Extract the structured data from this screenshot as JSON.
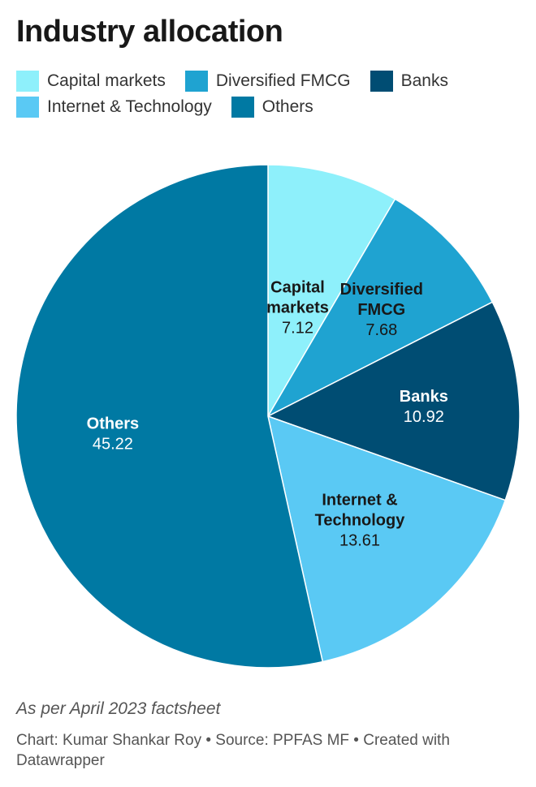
{
  "chart_data": {
    "type": "pie",
    "title": "Industry allocation",
    "categories": [
      "Capital markets",
      "Diversified FMCG",
      "Banks",
      "Internet & Technology",
      "Others"
    ],
    "values": [
      7.12,
      7.68,
      10.92,
      13.61,
      45.22
    ],
    "value_labels": [
      "7.12",
      "7.68",
      "10.92",
      "13.61",
      "45.22"
    ],
    "slice_label_lines": [
      [
        "Capital",
        "markets"
      ],
      [
        "Diversified",
        "FMCG"
      ],
      [
        "Banks"
      ],
      [
        "Internet &",
        "Technology"
      ],
      [
        "Others"
      ]
    ],
    "colors": [
      "#8ef0fb",
      "#1fa3d1",
      "#004d73",
      "#5ac9f4",
      "#0079a3"
    ],
    "label_colors": [
      "#181818",
      "#181818",
      "#ffffff",
      "#181818",
      "#ffffff"
    ],
    "legend": "top-left",
    "start_angle": "12 o'clock",
    "direction": "clockwise"
  },
  "footer": {
    "note": "As per April 2023 factsheet",
    "source": "Chart: Kumar Shankar Roy • Source: PPFAS MF • Created with Datawrapper"
  }
}
